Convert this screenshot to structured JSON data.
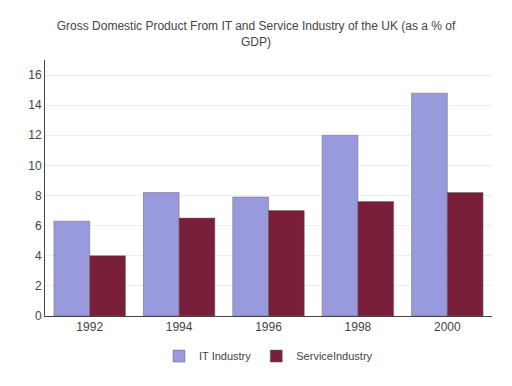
{
  "chart_data": {
    "type": "bar",
    "title": "Gross Domestic Product From IT and Service Industry of the UK (as a % of\nGDP)",
    "categories": [
      "1992",
      "1994",
      "1996",
      "1998",
      "2000"
    ],
    "series": [
      {
        "name": "IT Industry",
        "color": "#9999dd",
        "values": [
          6.3,
          8.2,
          7.9,
          12.0,
          14.8
        ]
      },
      {
        "name": "ServiceIndustry",
        "color": "#7a1f3a",
        "values": [
          4.0,
          6.5,
          7.0,
          7.6,
          8.2
        ]
      }
    ],
    "ylim": [
      0,
      17
    ],
    "yticks": [
      0,
      2,
      4,
      6,
      8,
      10,
      12,
      14,
      16
    ],
    "grid": true,
    "legend": "bottom"
  }
}
